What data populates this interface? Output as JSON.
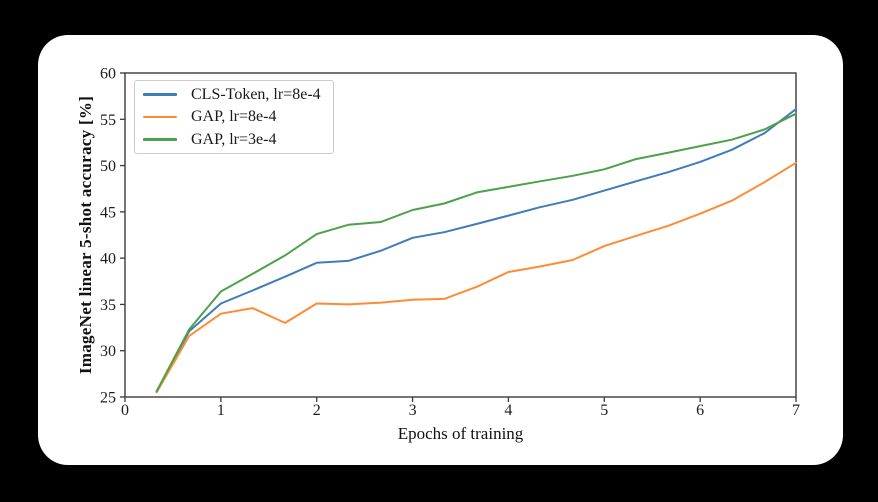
{
  "chart_data": {
    "type": "line",
    "title": "",
    "xlabel": "Epochs of training",
    "ylabel": "ImageNet linear 5-shot accuracy [%]",
    "xlim": [
      0,
      7
    ],
    "ylim": [
      25,
      60
    ],
    "xticks": [
      0,
      1,
      2,
      3,
      4,
      5,
      6,
      7
    ],
    "yticks": [
      25,
      30,
      35,
      40,
      45,
      50,
      55,
      60
    ],
    "grid": false,
    "legend_position": "upper left",
    "x": [
      0.33,
      0.67,
      1.0,
      1.33,
      1.67,
      2.0,
      2.33,
      2.67,
      3.0,
      3.33,
      3.67,
      4.0,
      4.33,
      4.67,
      5.0,
      5.33,
      5.67,
      6.0,
      6.33,
      6.67,
      7.0
    ],
    "series": [
      {
        "name": "CLS-Token, lr=8e-4",
        "color": "#3f7cba",
        "values": [
          25.6,
          32.1,
          35.1,
          36.5,
          38.0,
          39.5,
          39.7,
          40.8,
          42.2,
          42.8,
          43.7,
          44.6,
          45.5,
          46.3,
          47.3,
          48.3,
          49.3,
          50.4,
          51.7,
          53.5,
          56.1
        ]
      },
      {
        "name": "GAP, lr=8e-4",
        "color": "#ff8b35",
        "values": [
          25.5,
          31.6,
          34.0,
          34.6,
          33.0,
          35.1,
          35.0,
          35.2,
          35.5,
          35.6,
          36.9,
          38.5,
          39.1,
          39.8,
          41.3,
          42.4,
          43.5,
          44.8,
          46.2,
          48.2,
          50.3
        ]
      },
      {
        "name": "GAP, lr=3e-4",
        "color": "#4ba24b",
        "values": [
          25.6,
          32.3,
          36.4,
          38.3,
          40.3,
          42.6,
          43.6,
          43.9,
          45.2,
          45.9,
          47.1,
          47.7,
          48.3,
          48.9,
          49.6,
          50.7,
          51.4,
          52.1,
          52.8,
          53.9,
          55.6
        ]
      }
    ]
  }
}
